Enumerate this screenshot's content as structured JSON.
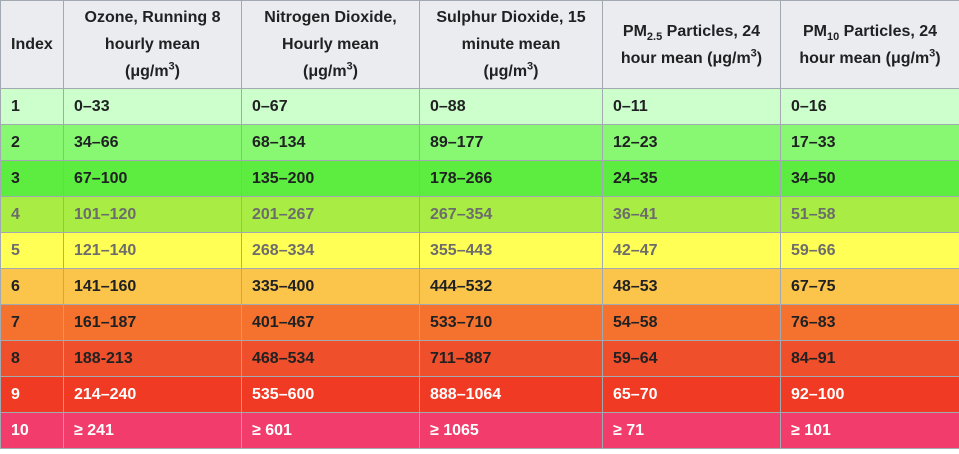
{
  "header": {
    "index": "Index",
    "ozone": {
      "line1": "Ozone, Running 8",
      "line2": "hourly mean",
      "unit_pre": "(μg/m",
      "unit_sup": "3",
      "unit_post": ")"
    },
    "no2": {
      "line1": "Nitrogen Dioxide,",
      "line2": "Hourly mean",
      "unit_pre": "(μg/m",
      "unit_sup": "3",
      "unit_post": ")"
    },
    "so2": {
      "line1": "Sulphur Dioxide, 15",
      "line2": "minute mean",
      "unit_pre": "(μg/m",
      "unit_sup": "3",
      "unit_post": ")"
    },
    "pm25": {
      "pre": "PM",
      "sub": "2.5",
      "post": " Particles, 24",
      "line2_pre": "hour mean (μg/m",
      "line2_sup": "3",
      "line2_post": ")"
    },
    "pm10": {
      "pre": "PM",
      "sub": "10",
      "post": " Particles, 24",
      "line2_pre": "hour mean (μg/m",
      "line2_sup": "3",
      "line2_post": ")"
    }
  },
  "rows": [
    {
      "index": "1",
      "ozone": "0–33",
      "no2": "0–67",
      "so2": "0–88",
      "pm25": "0–11",
      "pm10": "0–16",
      "bg": "#ccffcc",
      "fg": "#202122"
    },
    {
      "index": "2",
      "ozone": "34–66",
      "no2": "68–134",
      "so2": "89–177",
      "pm25": "12–23",
      "pm10": "17–33",
      "bg": "#88f873",
      "fg": "#202122"
    },
    {
      "index": "3",
      "ozone": "67–100",
      "no2": "135–200",
      "so2": "178–266",
      "pm25": "24–35",
      "pm10": "34–50",
      "bg": "#5ded41",
      "fg": "#202122"
    },
    {
      "index": "4",
      "ozone": "101–120",
      "no2": "201–267",
      "so2": "267–354",
      "pm25": "36–41",
      "pm10": "51–58",
      "bg": "#a9ec43",
      "fg": "#6c6c6c"
    },
    {
      "index": "5",
      "ozone": "121–140",
      "no2": "268–334",
      "so2": "355–443",
      "pm25": "42–47",
      "pm10": "59–66",
      "bg": "#ffff56",
      "fg": "#6c6c6c"
    },
    {
      "index": "6",
      "ozone": "141–160",
      "no2": "335–400",
      "so2": "444–532",
      "pm25": "48–53",
      "pm10": "67–75",
      "bg": "#fbc44a",
      "fg": "#202122"
    },
    {
      "index": "7",
      "ozone": "161–187",
      "no2": "401–467",
      "so2": "533–710",
      "pm25": "54–58",
      "pm10": "76–83",
      "bg": "#f5722e",
      "fg": "#202122"
    },
    {
      "index": "8",
      "ozone": "188-213",
      "no2": "468–534",
      "so2": "711–887",
      "pm25": "59–64",
      "pm10": "84–91",
      "bg": "#ef4f2a",
      "fg": "#202122"
    },
    {
      "index": "9",
      "ozone": "214–240",
      "no2": "535–600",
      "so2": "888–1064",
      "pm25": "65–70",
      "pm10": "92–100",
      "bg": "#f03a24",
      "fg": "#ffffff"
    },
    {
      "index": "10",
      "ozone": "≥ 241",
      "no2": "≥ 601",
      "so2": "≥ 1065",
      "pm25": "≥ 71",
      "pm10": "≥ 101",
      "bg": "#f23c6c",
      "fg": "#ffffff"
    }
  ]
}
